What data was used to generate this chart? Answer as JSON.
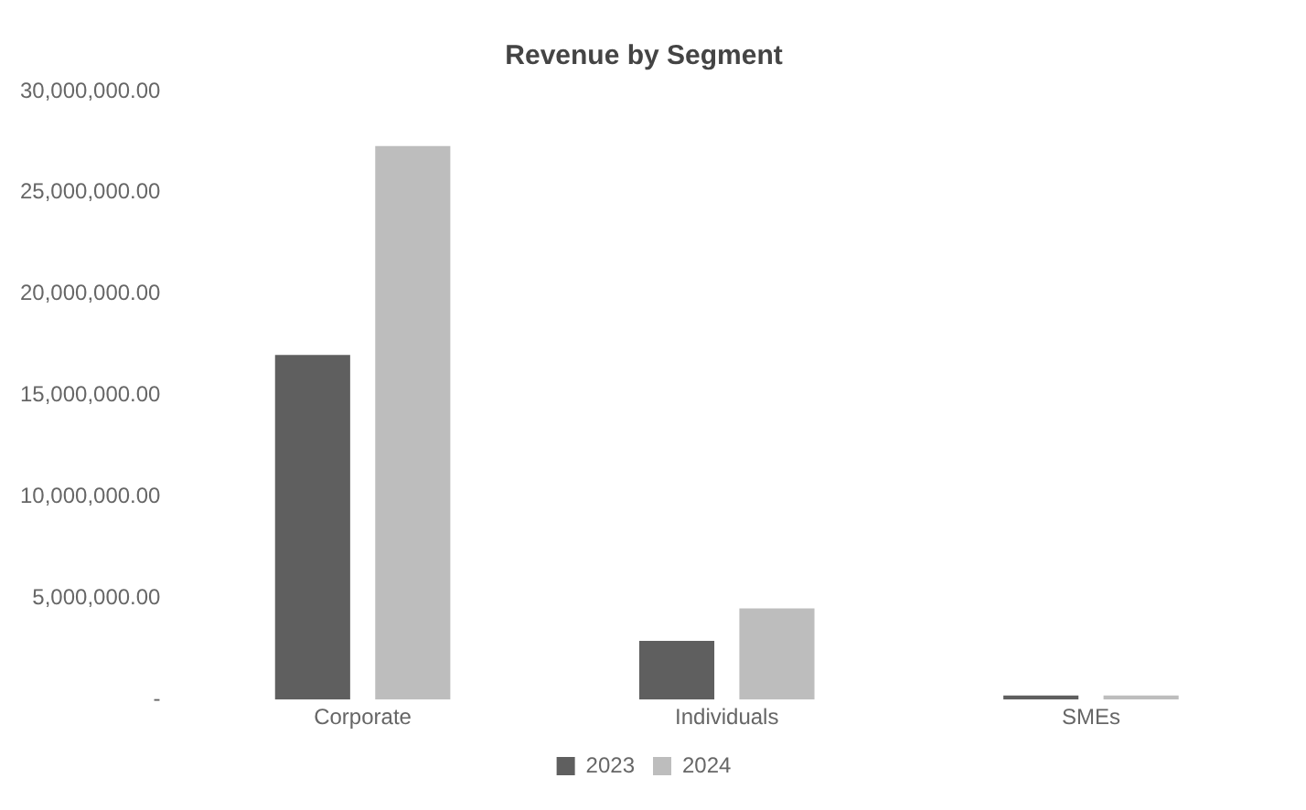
{
  "chart_data": {
    "type": "bar",
    "title": "Revenue by Segment",
    "categories": [
      "Corporate",
      "Individuals",
      "SMEs"
    ],
    "series": [
      {
        "name": "2023",
        "color": "#5f5f5f",
        "values": [
          17000000,
          2900000,
          200000
        ]
      },
      {
        "name": "2024",
        "color": "#bdbdbd",
        "values": [
          27300000,
          4500000,
          200000
        ]
      }
    ],
    "ylim": [
      0,
      30000000
    ],
    "yticks": [
      {
        "value": 0,
        "label": "-"
      },
      {
        "value": 5000000,
        "label": "5,000,000.00"
      },
      {
        "value": 10000000,
        "label": "10,000,000.00"
      },
      {
        "value": 15000000,
        "label": "15,000,000.00"
      },
      {
        "value": 20000000,
        "label": "20,000,000.00"
      },
      {
        "value": 25000000,
        "label": "25,000,000.00"
      },
      {
        "value": 30000000,
        "label": "30,000,000.00"
      }
    ],
    "grid": false,
    "legend": "bottom"
  }
}
